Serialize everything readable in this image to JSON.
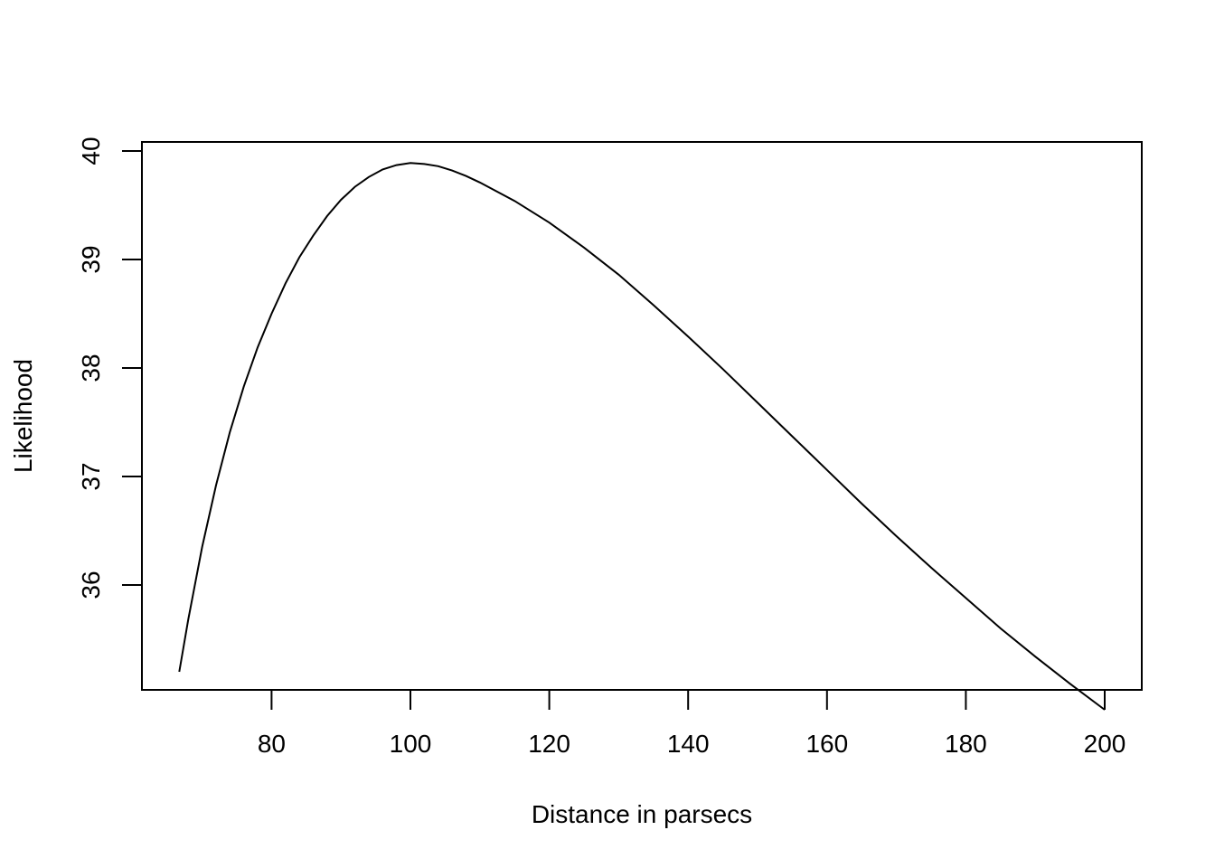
{
  "chart_data": {
    "type": "line",
    "title": "",
    "xlabel": "Distance in parsecs",
    "ylabel": "Likelihood",
    "xlim": [
      66.7,
      200
    ],
    "ylim": [
      35.2,
      39.89
    ],
    "x_ticks": [
      80,
      100,
      120,
      140,
      160,
      180,
      200
    ],
    "y_ticks": [
      36,
      37,
      38,
      39,
      40
    ],
    "grid": false,
    "legend": "none",
    "series": [
      {
        "color": "#000000",
        "x": [
          66.7,
          68,
          70,
          72,
          74,
          76,
          78,
          80,
          82,
          84,
          86,
          88,
          90,
          92,
          94,
          96,
          98,
          100,
          102,
          104,
          106,
          108,
          110,
          115,
          120,
          125,
          130,
          135,
          140,
          145,
          150,
          155,
          160,
          165,
          170,
          175,
          180,
          185,
          190,
          195,
          200
        ],
        "y": [
          35.2,
          35.68,
          36.35,
          36.92,
          37.41,
          37.83,
          38.19,
          38.5,
          38.78,
          39.02,
          39.22,
          39.4,
          39.55,
          39.67,
          39.76,
          39.83,
          39.87,
          39.89,
          39.88,
          39.86,
          39.82,
          39.77,
          39.71,
          39.54,
          39.34,
          39.11,
          38.86,
          38.58,
          38.29,
          37.99,
          37.68,
          37.37,
          37.06,
          36.75,
          36.45,
          36.16,
          35.88,
          35.6,
          35.34,
          35.09,
          34.85
        ]
      }
    ]
  }
}
